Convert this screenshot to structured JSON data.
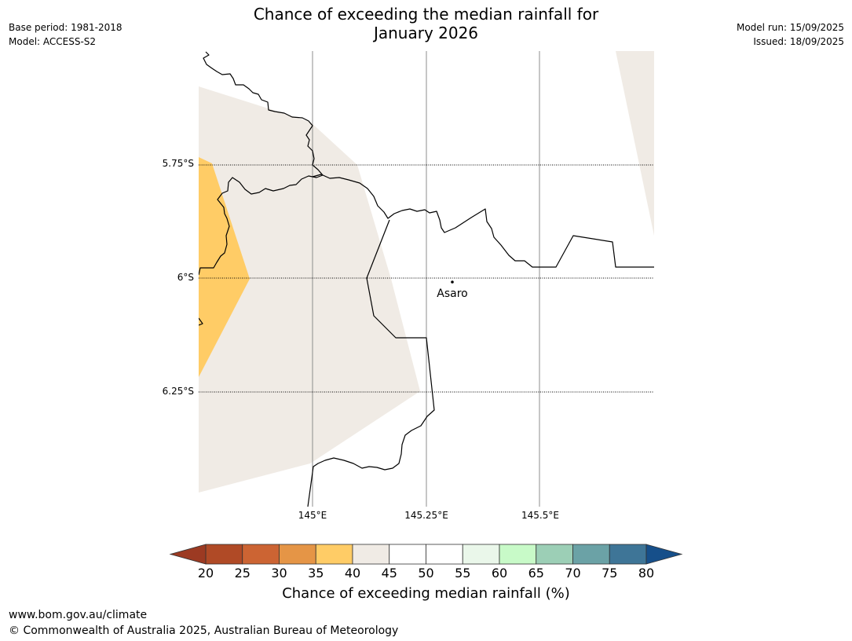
{
  "title": {
    "line1": "Chance of exceeding the median rainfall for",
    "line2": "January 2026"
  },
  "meta_left": {
    "base_period": "Base period: 1981-2018",
    "model": "Model: ACCESS-S2"
  },
  "meta_right": {
    "model_run": "Model run: 15/09/2025",
    "issued": "Issued: 18/09/2025"
  },
  "map": {
    "lat_labels": [
      "5.75°S",
      "6°S",
      "6.25°S"
    ],
    "lon_labels": [
      "145°E",
      "145.25°E",
      "145.5°E"
    ],
    "place": {
      "name": "Asaro"
    },
    "colors": {
      "band_35_40": "#ffcc66",
      "band_40_45": "#f0ebe5",
      "outline": "#000000",
      "gridline": "#8c8c8c"
    }
  },
  "colorbar": {
    "ticks": [
      "20",
      "25",
      "30",
      "35",
      "40",
      "45",
      "50",
      "55",
      "60",
      "65",
      "70",
      "75",
      "80"
    ],
    "low_extend_color": "#9c3a22",
    "high_extend_color": "#164f8a",
    "bins": [
      {
        "range": "20-25",
        "color": "#b04a26"
      },
      {
        "range": "25-30",
        "color": "#cc6433"
      },
      {
        "range": "30-35",
        "color": "#e59546"
      },
      {
        "range": "35-40",
        "color": "#ffcc66"
      },
      {
        "range": "40-45",
        "color": "#f0ebe5"
      },
      {
        "range": "45-50",
        "color": "#ffffff"
      },
      {
        "range": "50-55",
        "color": "#ffffff"
      },
      {
        "range": "55-60",
        "color": "#eaf7ea"
      },
      {
        "range": "60-65",
        "color": "#c8fac8"
      },
      {
        "range": "65-70",
        "color": "#9ccfb6"
      },
      {
        "range": "70-75",
        "color": "#6ba2a6"
      },
      {
        "range": "75-80",
        "color": "#3e7597"
      }
    ],
    "label": "Chance of exceeding median rainfall (%)"
  },
  "footer": {
    "url": "www.bom.gov.au/climate",
    "copyright": "© Commonwealth of Australia 2025, Australian Bureau of Meteorology"
  }
}
